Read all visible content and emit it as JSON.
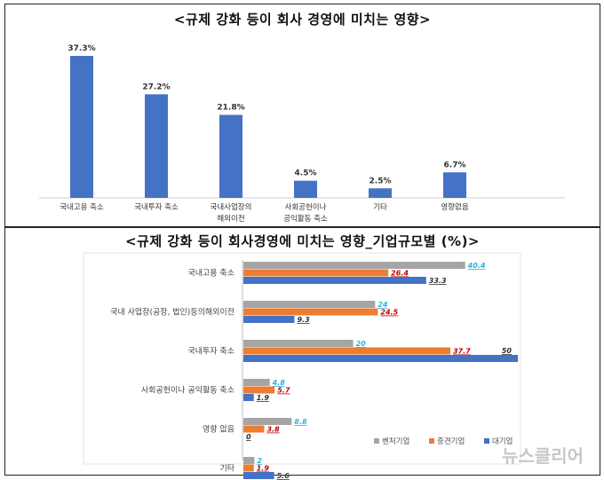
{
  "chart_data": [
    {
      "type": "bar",
      "title": "<규제 강화 등이 회사 경영에 미치는 영향>",
      "categories": [
        "국내고용 축소",
        "국내투자 축소",
        "국내사업장의\n해외이전",
        "사회공헌이나\n공익활동 축소",
        "기타",
        "영향없음"
      ],
      "values": [
        37.3,
        27.2,
        21.8,
        4.5,
        2.5,
        6.7
      ],
      "value_labels": [
        "37.3%",
        "27.2%",
        "21.8%",
        "4.5%",
        "2.5%",
        "6.7%"
      ],
      "ylim": [
        0,
        40
      ],
      "grid": false,
      "colors": {
        "bar": "#4472c4"
      }
    },
    {
      "type": "bar",
      "orientation": "horizontal",
      "title": "<규제 강화 등이 회사경영에 미치는 영향_기업규모별 (%)>",
      "categories": [
        "국내고용 축소",
        "국내 사업장(공장, 법인)등의해외이전",
        "국내투자 축소",
        "사회공헌이나 공익활동 축소",
        "영향 없음",
        "기타"
      ],
      "series": [
        {
          "name": "벤처기업",
          "values": [
            40.4,
            24,
            20,
            4.8,
            8.8,
            2
          ],
          "color": "#a5a5a5",
          "label_color": "#2eb3e0"
        },
        {
          "name": "중견기업",
          "values": [
            26.4,
            24.5,
            37.7,
            5.7,
            3.8,
            1.9
          ],
          "color": "#ed7d31",
          "label_color": "#c00000"
        },
        {
          "name": "대기업",
          "values": [
            33.3,
            9.3,
            50,
            1.9,
            0,
            5.6
          ],
          "color": "#4472c4",
          "label_color": "#333333"
        }
      ],
      "value_labels": [
        [
          "40.4",
          "24",
          "20",
          "4.8",
          "8.8",
          "2"
        ],
        [
          "26.4",
          "24.5",
          "37.7",
          "5.7",
          "3.8",
          "1.9"
        ],
        [
          "33.3",
          "9.3",
          "50",
          "1.9",
          "0",
          "5.6"
        ]
      ],
      "xlim": [
        0,
        50
      ],
      "legend": "bottom-right"
    }
  ],
  "watermark": {
    "text": "뉴스클리어"
  }
}
